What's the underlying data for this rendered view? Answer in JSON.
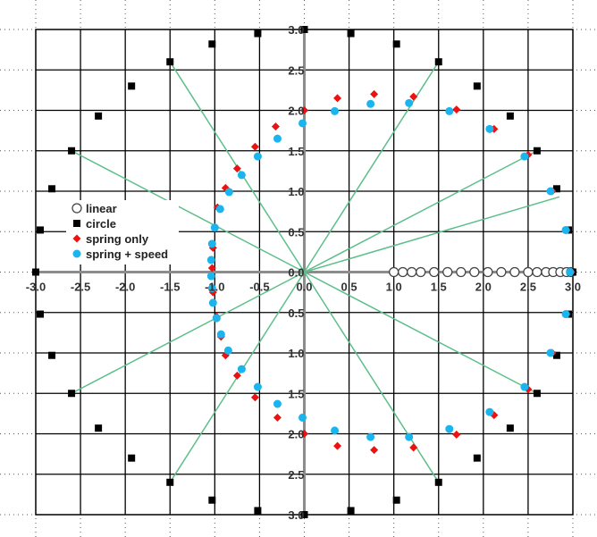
{
  "chart_data": {
    "type": "scatter",
    "xlim": [
      -3,
      3
    ],
    "ylim": [
      -3,
      3
    ],
    "x_ticks": [
      "-3.0",
      "-2.5",
      "-2.0",
      "-1.5",
      "-1.0",
      "-0.5",
      "0.0",
      "0.5",
      "1.0",
      "1.5",
      "2.0",
      "2.5",
      "3.0"
    ],
    "y_ticks_upper": [
      "3.0",
      "2.5",
      "2.0",
      "1.5",
      "1.0",
      "0.5",
      "0.0"
    ],
    "y_ticks_lower": [
      "0.5",
      "1.0",
      "1.5",
      "2.0",
      "2.5",
      "3.0"
    ],
    "grid": true,
    "legend_position": "left-middle",
    "colors": {
      "grid": "#000000",
      "axes": "#8c8c8c",
      "rays": "#5cbf8a",
      "circle": "#000000",
      "spring_only": "#ee1111",
      "spring_speed": "#1ab4ee",
      "linear_stroke": "#444444"
    },
    "rays": [
      [
        2.85,
        0.93
      ],
      [
        2.6,
        1.5
      ],
      [
        1.5,
        2.6
      ],
      [
        -1.5,
        2.6
      ],
      [
        -2.6,
        1.5
      ],
      [
        -2.6,
        -1.5
      ],
      [
        -1.5,
        -2.6
      ],
      [
        1.5,
        -2.6
      ],
      [
        2.6,
        -1.5
      ]
    ],
    "series": [
      {
        "name": "linear",
        "marker": "open-circle",
        "points": [
          [
            1.0,
            0
          ],
          [
            1.1,
            0
          ],
          [
            1.2,
            0
          ],
          [
            1.3,
            0
          ],
          [
            1.45,
            0
          ],
          [
            1.6,
            0
          ],
          [
            1.75,
            0
          ],
          [
            1.9,
            0
          ],
          [
            2.05,
            0
          ],
          [
            2.2,
            0
          ],
          [
            2.35,
            0
          ],
          [
            2.5,
            0
          ],
          [
            2.6,
            0
          ],
          [
            2.7,
            0
          ],
          [
            2.78,
            0
          ],
          [
            2.86,
            0
          ],
          [
            2.93,
            0
          ],
          [
            2.98,
            0
          ]
        ]
      },
      {
        "name": "circle",
        "marker": "square",
        "points": [
          [
            3.0,
            0
          ],
          [
            2.95,
            0.52
          ],
          [
            2.82,
            1.03
          ],
          [
            2.6,
            1.5
          ],
          [
            2.3,
            1.93
          ],
          [
            1.93,
            2.3
          ],
          [
            1.5,
            2.6
          ],
          [
            1.03,
            2.82
          ],
          [
            0.52,
            2.95
          ],
          [
            0,
            3.0
          ],
          [
            -0.52,
            2.95
          ],
          [
            -1.03,
            2.82
          ],
          [
            -1.5,
            2.6
          ],
          [
            -1.93,
            2.3
          ],
          [
            -2.3,
            1.93
          ],
          [
            -2.6,
            1.5
          ],
          [
            -2.82,
            1.03
          ],
          [
            -2.95,
            0.52
          ],
          [
            -3.0,
            0
          ],
          [
            -2.95,
            -0.52
          ],
          [
            -2.82,
            -1.03
          ],
          [
            -2.6,
            -1.5
          ],
          [
            -2.3,
            -1.93
          ],
          [
            -1.93,
            -2.3
          ],
          [
            -1.5,
            -2.6
          ],
          [
            -1.03,
            -2.82
          ],
          [
            -0.52,
            -2.95
          ],
          [
            0,
            -3.0
          ],
          [
            0.52,
            -2.95
          ],
          [
            1.03,
            -2.82
          ],
          [
            1.5,
            -2.6
          ],
          [
            1.93,
            -2.3
          ],
          [
            2.3,
            -1.93
          ],
          [
            2.6,
            -1.5
          ],
          [
            2.82,
            -1.03
          ],
          [
            2.95,
            -0.52
          ]
        ]
      },
      {
        "name": "spring only",
        "marker": "diamond",
        "points": [
          [
            2.98,
            0
          ],
          [
            2.93,
            0.52
          ],
          [
            2.77,
            1.0
          ],
          [
            2.5,
            1.45
          ],
          [
            2.12,
            1.77
          ],
          [
            1.7,
            2.01
          ],
          [
            1.22,
            2.17
          ],
          [
            0.78,
            2.2
          ],
          [
            0.37,
            2.15
          ],
          [
            0,
            2.0
          ],
          [
            -0.32,
            1.8
          ],
          [
            -0.55,
            1.55
          ],
          [
            -0.75,
            1.28
          ],
          [
            -0.88,
            1.04
          ],
          [
            -0.97,
            0.8
          ],
          [
            -1.0,
            0.55
          ],
          [
            -1.02,
            0.3
          ],
          [
            -1.03,
            0.05
          ],
          [
            -1.02,
            -0.25
          ],
          [
            -0.98,
            -0.55
          ],
          [
            -0.93,
            -0.8
          ],
          [
            -0.88,
            -1.03
          ],
          [
            -0.75,
            -1.28
          ],
          [
            -0.55,
            -1.55
          ],
          [
            -0.3,
            -1.8
          ],
          [
            0,
            -2.0
          ],
          [
            0.37,
            -2.15
          ],
          [
            0.78,
            -2.2
          ],
          [
            1.22,
            -2.17
          ],
          [
            1.7,
            -2.01
          ],
          [
            2.12,
            -1.77
          ],
          [
            2.5,
            -1.45
          ],
          [
            2.77,
            -1.0
          ],
          [
            2.93,
            -0.52
          ]
        ]
      },
      {
        "name": "spring + speed",
        "marker": "dot",
        "points": [
          [
            2.97,
            0
          ],
          [
            2.92,
            0.52
          ],
          [
            2.75,
            1.0
          ],
          [
            2.46,
            1.43
          ],
          [
            2.07,
            1.77
          ],
          [
            1.62,
            1.99
          ],
          [
            1.17,
            2.09
          ],
          [
            0.74,
            2.08
          ],
          [
            0.34,
            1.99
          ],
          [
            -0.02,
            1.84
          ],
          [
            -0.3,
            1.65
          ],
          [
            -0.52,
            1.43
          ],
          [
            -0.7,
            1.2
          ],
          [
            -0.84,
            0.99
          ],
          [
            -0.94,
            0.78
          ],
          [
            -1.0,
            0.55
          ],
          [
            -1.03,
            0.35
          ],
          [
            -1.04,
            0.15
          ],
          [
            -1.04,
            -0.05
          ],
          [
            -1.03,
            -0.2
          ],
          [
            -1.02,
            -0.38
          ],
          [
            -0.98,
            -0.57
          ],
          [
            -0.93,
            -0.77
          ],
          [
            -0.85,
            -0.97
          ],
          [
            -0.7,
            -1.2
          ],
          [
            -0.52,
            -1.42
          ],
          [
            -0.3,
            -1.63
          ],
          [
            -0.02,
            -1.8
          ],
          [
            0.34,
            -1.96
          ],
          [
            0.74,
            -2.04
          ],
          [
            1.17,
            -2.04
          ],
          [
            1.62,
            -1.94
          ],
          [
            2.07,
            -1.73
          ],
          [
            2.46,
            -1.42
          ],
          [
            2.75,
            -1.0
          ],
          [
            2.92,
            -0.52
          ]
        ]
      }
    ]
  }
}
